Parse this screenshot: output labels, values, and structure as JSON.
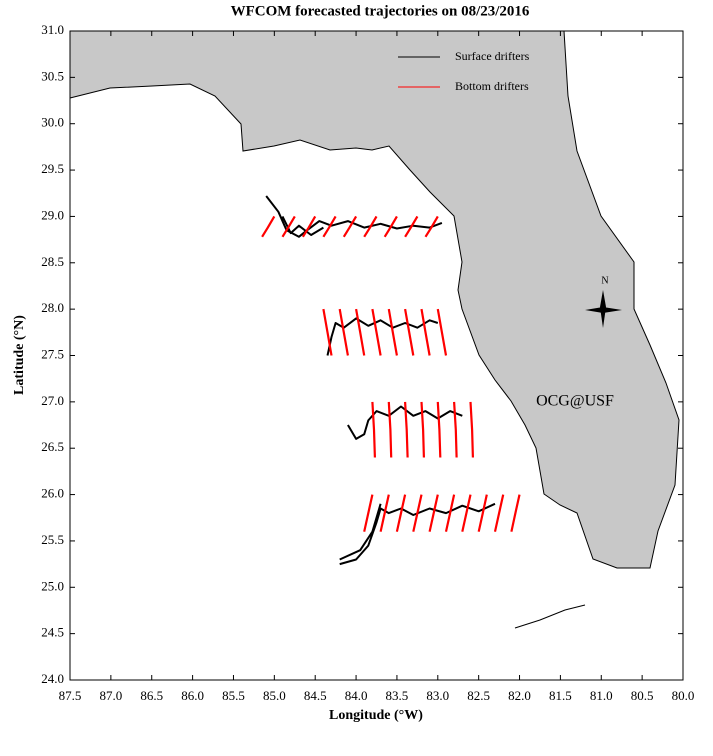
{
  "chart_data": {
    "type": "map",
    "title": "WFCOM forecasted trajectories on 08/23/2016",
    "xlabel": "Longitude (°W)",
    "ylabel": "Latitude (°N)",
    "xlim": [
      87.5,
      80.0
    ],
    "ylim": [
      24.0,
      31.0
    ],
    "xticks": [
      87.5,
      {
        "value": 87,
        "label": "87.0"
      },
      86.5,
      {
        "value": 86,
        "label": "86.0"
      },
      85.5,
      {
        "value": 85,
        "label": "85.0"
      },
      84.5,
      {
        "value": 84,
        "label": "84.0"
      },
      83.5,
      {
        "value": 83,
        "label": "83.0"
      },
      82.5,
      {
        "value": 82,
        "label": "82.0"
      },
      81.5,
      {
        "value": 81,
        "label": "81.0"
      },
      80.5,
      {
        "value": 80,
        "label": "80.0"
      }
    ],
    "yticks": [
      {
        "value": 24,
        "label": "24.0"
      },
      24.5,
      {
        "value": 25,
        "label": "25.0"
      },
      25.5,
      {
        "value": 26,
        "label": "26.0"
      },
      26.5,
      {
        "value": 27,
        "label": "27.0"
      },
      27.5,
      {
        "value": 28,
        "label": "28.0"
      },
      28.5,
      {
        "value": 29,
        "label": "29.0"
      },
      29.5,
      {
        "value": 30,
        "label": "30.0"
      },
      30.5,
      {
        "value": 31,
        "label": "31.0"
      }
    ],
    "legend": "upper right",
    "annotation": "OCG@USF",
    "annotation_color": "#ff0000",
    "compass_label": "N",
    "land_color": "#c8c8c8",
    "series": [
      {
        "name": "Surface drifters",
        "color": "#000000",
        "x": [
          85.1,
          84.95,
          84.85,
          84.7,
          84.6,
          84.45,
          84.3,
          84.1,
          83.9,
          83.7,
          83.5,
          83.3,
          83.1,
          82.95,
          null,
          84.9,
          84.8,
          84.7,
          84.55,
          84.4,
          null,
          84.35,
          84.3,
          84.25,
          84.15,
          84.0,
          83.85,
          83.7,
          83.55,
          83.4,
          83.25,
          83.1,
          83.0,
          null,
          84.1,
          84.0,
          83.9,
          83.85,
          83.75,
          83.6,
          83.45,
          83.3,
          83.15,
          83.0,
          82.85,
          82.7,
          null,
          84.2,
          84.0,
          83.85,
          83.75,
          83.7,
          83.6,
          83.45,
          83.3,
          83.1,
          82.9,
          82.7,
          82.5,
          82.3,
          null,
          84.2,
          83.95,
          83.8,
          83.7
        ],
        "y": [
          29.22,
          29.05,
          28.85,
          28.78,
          28.85,
          28.95,
          28.9,
          28.95,
          28.88,
          28.92,
          28.87,
          28.9,
          28.88,
          28.93,
          null,
          29.0,
          28.82,
          28.9,
          28.8,
          28.88,
          null,
          27.5,
          27.7,
          27.85,
          27.8,
          27.9,
          27.82,
          27.88,
          27.8,
          27.85,
          27.8,
          27.88,
          27.85,
          null,
          26.75,
          26.6,
          26.65,
          26.8,
          26.9,
          26.85,
          26.95,
          26.85,
          26.9,
          26.82,
          26.9,
          26.85,
          null,
          25.25,
          25.3,
          25.45,
          25.7,
          25.85,
          25.8,
          25.85,
          25.78,
          25.85,
          25.8,
          25.88,
          25.82,
          25.9,
          null,
          25.3,
          25.4,
          25.6,
          25.9
        ]
      },
      {
        "name": "Bottom drifters",
        "color": "#ff0000",
        "x": [
          85.0,
          85.08,
          85.15,
          null,
          84.75,
          84.83,
          84.9,
          null,
          84.5,
          84.58,
          84.65,
          null,
          84.25,
          84.33,
          84.4,
          null,
          84.0,
          84.08,
          84.15,
          null,
          83.75,
          83.83,
          83.9,
          null,
          83.5,
          83.58,
          83.65,
          null,
          83.25,
          83.33,
          83.4,
          null,
          83.0,
          83.08,
          83.15,
          null,
          84.4,
          84.35,
          84.3,
          null,
          84.2,
          84.15,
          84.1,
          null,
          84.0,
          83.95,
          83.9,
          null,
          83.8,
          83.75,
          83.7,
          null,
          83.6,
          83.55,
          83.5,
          null,
          83.4,
          83.35,
          83.3,
          null,
          83.2,
          83.15,
          83.1,
          null,
          83.0,
          82.95,
          82.9,
          null,
          83.8,
          83.78,
          83.77,
          null,
          83.6,
          83.58,
          83.57,
          null,
          83.4,
          83.38,
          83.37,
          null,
          83.2,
          83.18,
          83.17,
          null,
          83.0,
          82.98,
          82.97,
          null,
          82.8,
          82.78,
          82.77,
          null,
          82.6,
          82.58,
          82.57,
          null,
          83.8,
          83.85,
          83.9,
          null,
          83.6,
          83.65,
          83.7,
          null,
          83.4,
          83.45,
          83.5,
          null,
          83.2,
          83.25,
          83.3,
          null,
          83.0,
          83.05,
          83.1,
          null,
          82.8,
          82.85,
          82.9,
          null,
          82.6,
          82.65,
          82.7,
          null,
          82.4,
          82.45,
          82.5,
          null,
          82.2,
          82.25,
          82.3,
          null,
          82.0,
          82.05,
          82.1
        ],
        "y": [
          29.0,
          28.88,
          28.78,
          null,
          29.0,
          28.88,
          28.78,
          null,
          29.0,
          28.88,
          28.78,
          null,
          29.0,
          28.88,
          28.78,
          null,
          29.0,
          28.88,
          28.78,
          null,
          29.0,
          28.88,
          28.78,
          null,
          29.0,
          28.88,
          28.78,
          null,
          29.0,
          28.88,
          28.78,
          null,
          29.0,
          28.88,
          28.78,
          null,
          28.0,
          27.75,
          27.5,
          null,
          28.0,
          27.75,
          27.5,
          null,
          28.0,
          27.75,
          27.5,
          null,
          28.0,
          27.75,
          27.5,
          null,
          28.0,
          27.75,
          27.5,
          null,
          28.0,
          27.75,
          27.5,
          null,
          28.0,
          27.75,
          27.5,
          null,
          28.0,
          27.75,
          27.5,
          null,
          27.0,
          26.7,
          26.4,
          null,
          27.0,
          26.7,
          26.4,
          null,
          27.0,
          26.7,
          26.4,
          null,
          27.0,
          26.7,
          26.4,
          null,
          27.0,
          26.7,
          26.4,
          null,
          27.0,
          26.7,
          26.4,
          null,
          27.0,
          26.7,
          26.4,
          null,
          26.0,
          25.8,
          25.6,
          null,
          26.0,
          25.8,
          25.6,
          null,
          26.0,
          25.8,
          25.6,
          null,
          26.0,
          25.8,
          25.6,
          null,
          26.0,
          25.8,
          25.6,
          null,
          26.0,
          25.8,
          25.6,
          null,
          26.0,
          25.8,
          25.6,
          null,
          26.0,
          25.8,
          25.6,
          null,
          26.0,
          25.8,
          25.6,
          null,
          26.0,
          25.8,
          25.6
        ]
      }
    ]
  }
}
